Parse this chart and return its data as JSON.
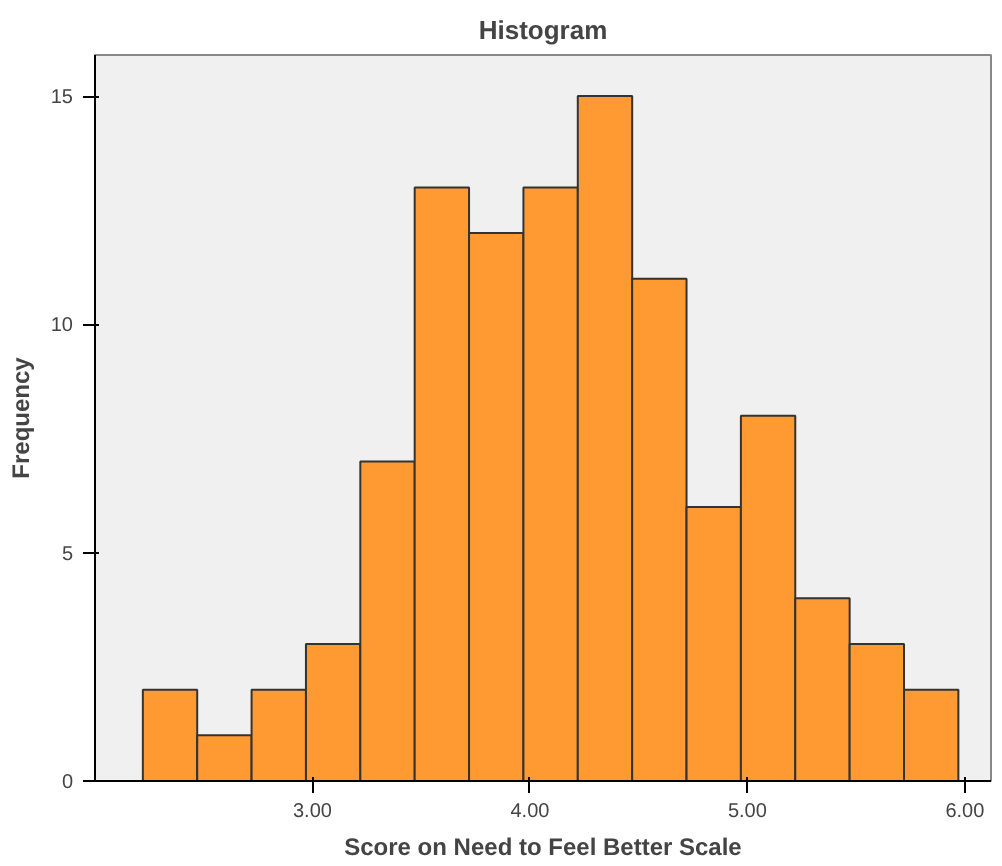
{
  "chart_data": {
    "type": "histogram",
    "title": "Histogram",
    "xlabel": "Score on Need to Feel Better Scale",
    "ylabel": "Frequency",
    "bins": [
      2.22,
      2.47,
      2.72,
      2.97,
      3.22,
      3.47,
      3.72,
      3.97,
      4.22,
      4.47,
      4.72,
      4.97,
      5.22,
      5.47,
      5.72,
      5.97
    ],
    "values": [
      2,
      1,
      2,
      3,
      7,
      13,
      12,
      13,
      15,
      11,
      6,
      8,
      4,
      3,
      2
    ],
    "color": "#ff9a33",
    "xlim": [
      2.0,
      6.12
    ],
    "ylim": [
      0,
      15.9
    ],
    "xticks": [
      {
        "value": 3,
        "label": "3.00"
      },
      {
        "value": 4,
        "label": "4.00"
      },
      {
        "value": 5,
        "label": "5.00"
      },
      {
        "value": 6,
        "label": "6.00"
      }
    ],
    "yticks": [
      0,
      5,
      10,
      15
    ],
    "grid": false
  }
}
